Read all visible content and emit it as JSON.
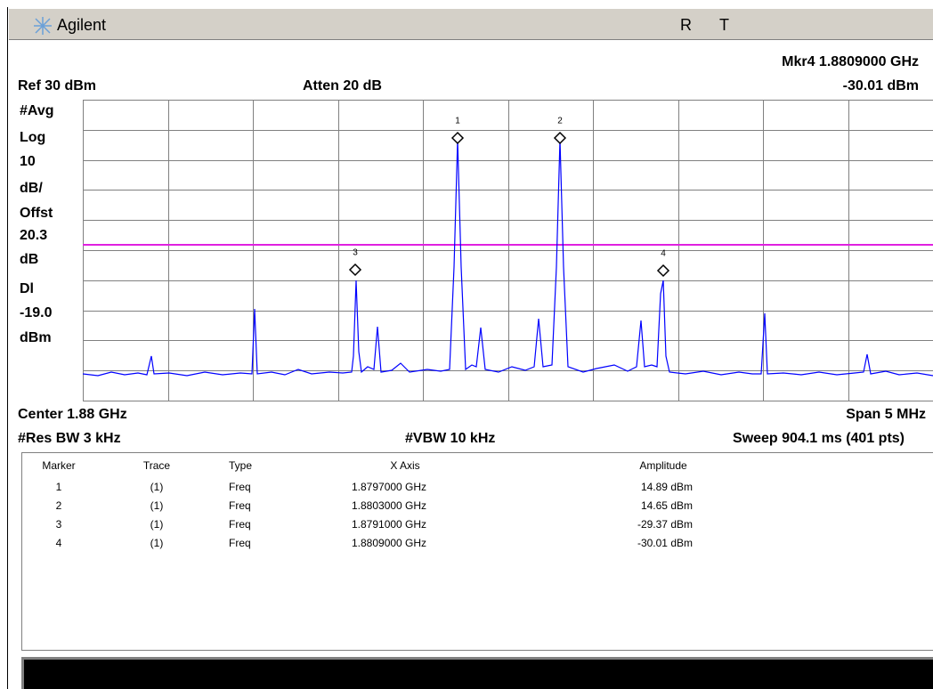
{
  "header": {
    "brand": "Agilent",
    "status": [
      "R",
      "T"
    ]
  },
  "settings": {
    "marker_readout": "Mkr4  1.8809000 GHz",
    "ref": "Ref 30 dBm",
    "atten": "Atten 20 dB",
    "marker_amplitude": "-30.01 dBm"
  },
  "left_labels": [
    "#Avg",
    "Log",
    "10",
    "dB/",
    "Offst",
    "20.3",
    "dB",
    "Dl",
    "-19.0",
    "dBm"
  ],
  "plot": {
    "marker_labels": [
      "1",
      "2",
      "3",
      "4"
    ]
  },
  "footer": {
    "center": "Center 1.88 GHz",
    "span": "Span 5 MHz",
    "res_bw": "#Res BW 3 kHz",
    "vbw": "#VBW 10 kHz",
    "sweep": "Sweep 904.1 ms (401 pts)"
  },
  "table": {
    "columns": [
      "Marker",
      "Trace",
      "Type",
      "X Axis",
      "Amplitude"
    ],
    "rows": [
      [
        "1",
        "(1)",
        "Freq",
        "1.8797000 GHz",
        "14.89 dBm"
      ],
      [
        "2",
        "(1)",
        "Freq",
        "1.8803000 GHz",
        "14.65 dBm"
      ],
      [
        "3",
        "(1)",
        "Freq",
        "1.8791000 GHz",
        "-29.37 dBm"
      ],
      [
        "4",
        "(1)",
        "Freq",
        "1.8809000 GHz",
        "-30.01 dBm"
      ]
    ]
  }
}
